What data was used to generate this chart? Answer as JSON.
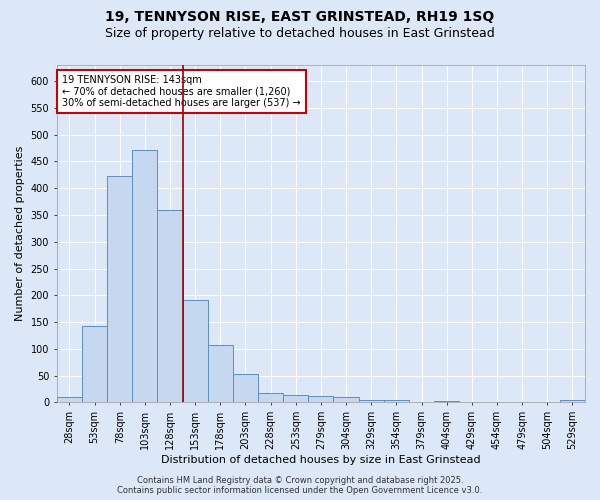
{
  "title_line1": "19, TENNYSON RISE, EAST GRINSTEAD, RH19 1SQ",
  "title_line2": "Size of property relative to detached houses in East Grinstead",
  "xlabel": "Distribution of detached houses by size in East Grinstead",
  "ylabel": "Number of detached properties",
  "bar_labels": [
    "28sqm",
    "53sqm",
    "78sqm",
    "103sqm",
    "128sqm",
    "153sqm",
    "178sqm",
    "203sqm",
    "228sqm",
    "253sqm",
    "279sqm",
    "304sqm",
    "329sqm",
    "354sqm",
    "379sqm",
    "404sqm",
    "429sqm",
    "454sqm",
    "479sqm",
    "504sqm",
    "529sqm"
  ],
  "bar_values": [
    10,
    143,
    422,
    471,
    360,
    192,
    107,
    53,
    18,
    14,
    12,
    10,
    4,
    4,
    0,
    3,
    0,
    0,
    0,
    0,
    4
  ],
  "bar_color": "#c5d8f0",
  "bar_edge_color": "#5b8ec4",
  "background_color": "#dce8f8",
  "grid_color": "#ffffff",
  "vline_color": "#990000",
  "vline_x": 4.5,
  "annotation_title": "19 TENNYSON RISE: 143sqm",
  "annotation_line1": "← 70% of detached houses are smaller (1,260)",
  "annotation_line2": "30% of semi-detached houses are larger (537) →",
  "annotation_box_facecolor": "#ffffff",
  "annotation_box_edgecolor": "#cc0000",
  "footer_line1": "Contains HM Land Registry data © Crown copyright and database right 2025.",
  "footer_line2": "Contains public sector information licensed under the Open Government Licence v3.0.",
  "fig_facecolor": "#dce8f8",
  "ylim": [
    0,
    630
  ],
  "yticks": [
    0,
    50,
    100,
    150,
    200,
    250,
    300,
    350,
    400,
    450,
    500,
    550,
    600
  ],
  "title_fontsize": 10,
  "subtitle_fontsize": 9,
  "axis_label_fontsize": 8,
  "tick_fontsize": 7,
  "annotation_fontsize": 7,
  "footer_fontsize": 6
}
